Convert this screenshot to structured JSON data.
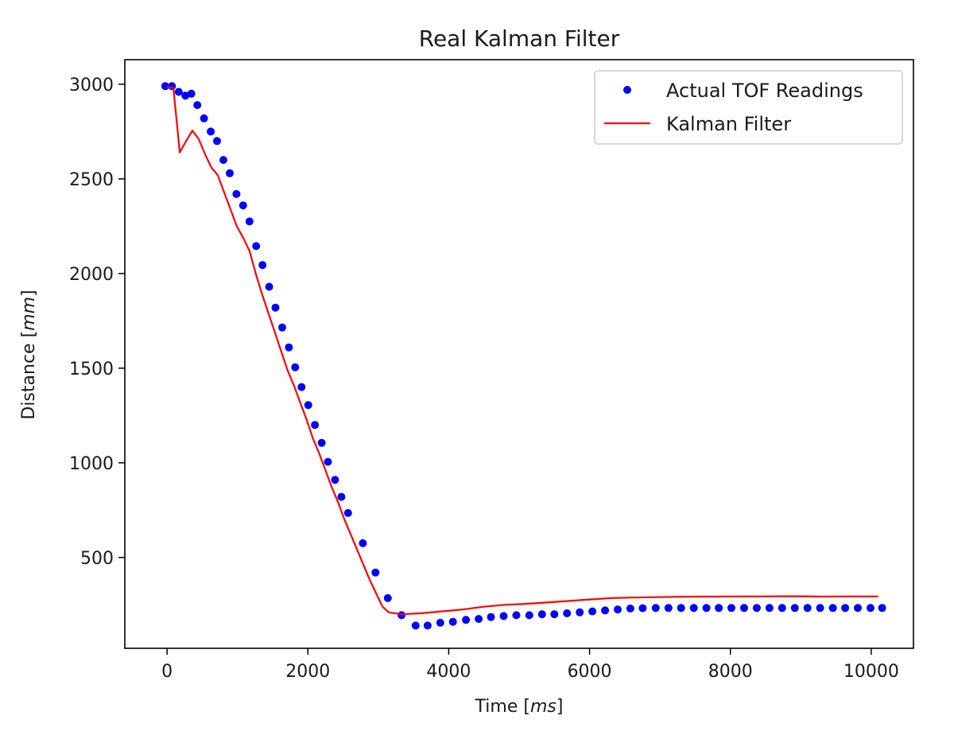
{
  "chart_data": {
    "type": "line",
    "title": "Real Kalman Filter",
    "xlabel": {
      "prefix": "Time [",
      "unit": "ms",
      "suffix": "]"
    },
    "ylabel": {
      "prefix": "Distance [",
      "unit": "mm",
      "suffix": "]"
    },
    "xlim": [
      -600,
      10600
    ],
    "ylim": [
      20,
      3130
    ],
    "x_ticks": [
      0,
      2000,
      4000,
      6000,
      8000,
      10000
    ],
    "y_ticks": [
      500,
      1000,
      1500,
      2000,
      2500,
      3000
    ],
    "grid": false,
    "legend_position": "upper right",
    "series": [
      {
        "name": "Actual TOF Readings",
        "style": "markers",
        "color": "#0000ff",
        "x": [
          -25,
          70,
          165,
          260,
          345,
          430,
          525,
          620,
          710,
          800,
          890,
          985,
          1080,
          1170,
          1265,
          1355,
          1450,
          1540,
          1635,
          1730,
          1820,
          1910,
          2005,
          2100,
          2195,
          2285,
          2385,
          2475,
          2570,
          2780,
          2960,
          3135,
          3330,
          3530,
          3700,
          3880,
          4060,
          4245,
          4425,
          4600,
          4780,
          4960,
          5145,
          5325,
          5500,
          5680,
          5860,
          6040,
          6220,
          6400,
          6580,
          6755,
          6940,
          7120,
          7300,
          7480,
          7660,
          7835,
          8015,
          8195,
          8375,
          8555,
          8735,
          8915,
          9095,
          9275,
          9455,
          9630,
          9810,
          9990,
          10155
        ],
        "y": [
          2990,
          2990,
          2960,
          2940,
          2950,
          2890,
          2820,
          2750,
          2700,
          2600,
          2530,
          2420,
          2360,
          2275,
          2145,
          2045,
          1930,
          1820,
          1715,
          1610,
          1505,
          1400,
          1305,
          1200,
          1105,
          1005,
          910,
          820,
          735,
          575,
          420,
          285,
          195,
          140,
          140,
          155,
          160,
          170,
          175,
          185,
          190,
          195,
          195,
          200,
          200,
          205,
          210,
          215,
          220,
          225,
          230,
          232,
          233,
          233,
          233,
          233,
          233,
          233,
          233,
          233,
          233,
          233,
          233,
          233,
          233,
          233,
          233,
          233,
          233,
          233,
          233
        ]
      },
      {
        "name": "Kalman Filter",
        "style": "line",
        "color": "#ff0000",
        "x": [
          0,
          90,
          180,
          270,
          360,
          450,
          540,
          630,
          720,
          810,
          900,
          990,
          1080,
          1170,
          1260,
          1350,
          1440,
          1530,
          1620,
          1710,
          1800,
          1890,
          1980,
          2070,
          2160,
          2250,
          2340,
          2430,
          2520,
          2610,
          2700,
          2790,
          2880,
          2970,
          3060,
          3150,
          3330,
          3600,
          3900,
          4200,
          4500,
          4800,
          5100,
          5400,
          5700,
          6000,
          6300,
          6600,
          6900,
          7200,
          7500,
          7800,
          8100,
          8400,
          8700,
          9000,
          9300,
          9600,
          9900,
          10100
        ],
        "y": [
          2985,
          2980,
          2640,
          2700,
          2755,
          2710,
          2630,
          2560,
          2520,
          2430,
          2340,
          2250,
          2190,
          2120,
          2000,
          1890,
          1790,
          1690,
          1590,
          1490,
          1410,
          1320,
          1230,
          1130,
          1050,
          960,
          870,
          790,
          700,
          620,
          540,
          460,
          380,
          310,
          240,
          210,
          200,
          205,
          215,
          225,
          240,
          250,
          255,
          262,
          270,
          278,
          285,
          288,
          290,
          292,
          293,
          293,
          294,
          294,
          295,
          295,
          293,
          294,
          294,
          294
        ]
      }
    ]
  }
}
